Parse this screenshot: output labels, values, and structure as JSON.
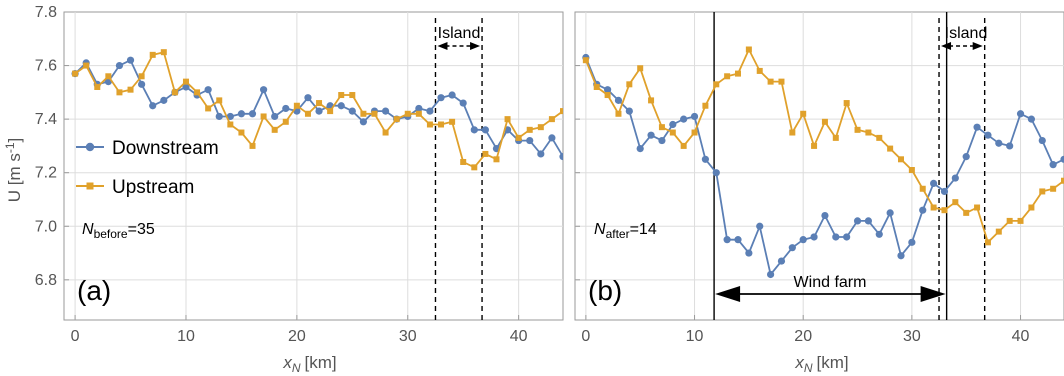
{
  "chart_data": [
    {
      "panel": "a",
      "type": "line",
      "panel_label": "(a)",
      "xlabel_main": "x",
      "xlabel_sub": "N",
      "xlabel_unit": "[km]",
      "ylabel": "U [m s",
      "ylabel_sup": "-1",
      "ylabel_close": "]",
      "xlim": [
        -1,
        44
      ],
      "ylim": [
        6.65,
        7.8
      ],
      "xticks": [
        0,
        10,
        20,
        30,
        40
      ],
      "yticks": [
        6.8,
        7.0,
        7.2,
        7.4,
        7.6,
        7.8
      ],
      "grid": true,
      "legend_placement": "left",
      "series": [
        {
          "name": "Downstream",
          "color": "#5b7fb5",
          "marker": "circle",
          "x": [
            0,
            1,
            2,
            3,
            4,
            5,
            6,
            7,
            8,
            9,
            10,
            11,
            12,
            13,
            14,
            15,
            16,
            17,
            18,
            19,
            20,
            21,
            22,
            23,
            24,
            25,
            26,
            27,
            28,
            29,
            30,
            31,
            32,
            33,
            34,
            35,
            36,
            37,
            38,
            39,
            40,
            41,
            42,
            43,
            44
          ],
          "y": [
            7.57,
            7.61,
            7.53,
            7.54,
            7.6,
            7.62,
            7.53,
            7.45,
            7.47,
            7.5,
            7.52,
            7.49,
            7.51,
            7.41,
            7.41,
            7.42,
            7.42,
            7.51,
            7.41,
            7.44,
            7.43,
            7.48,
            7.43,
            7.45,
            7.45,
            7.43,
            7.39,
            7.43,
            7.43,
            7.4,
            7.41,
            7.44,
            7.43,
            7.48,
            7.49,
            7.46,
            7.36,
            7.36,
            7.29,
            7.36,
            7.32,
            7.32,
            7.27,
            7.33,
            7.26
          ]
        },
        {
          "name": "Upstream",
          "color": "#e0a12b",
          "marker": "square",
          "x": [
            0,
            1,
            2,
            3,
            4,
            5,
            6,
            7,
            8,
            9,
            10,
            11,
            12,
            13,
            14,
            15,
            16,
            17,
            18,
            19,
            20,
            21,
            22,
            23,
            24,
            25,
            26,
            27,
            28,
            29,
            30,
            31,
            32,
            33,
            34,
            35,
            36,
            37,
            38,
            39,
            40,
            41,
            42,
            43,
            44
          ],
          "y": [
            7.57,
            7.6,
            7.52,
            7.56,
            7.5,
            7.51,
            7.56,
            7.64,
            7.65,
            7.5,
            7.54,
            7.5,
            7.44,
            7.47,
            7.38,
            7.35,
            7.3,
            7.41,
            7.36,
            7.39,
            7.45,
            7.42,
            7.46,
            7.43,
            7.49,
            7.49,
            7.42,
            7.42,
            7.35,
            7.4,
            7.42,
            7.42,
            7.38,
            7.38,
            7.39,
            7.24,
            7.22,
            7.27,
            7.25,
            7.4,
            7.33,
            7.36,
            7.37,
            7.4,
            7.43
          ]
        }
      ],
      "regions": [
        {
          "label": "Island",
          "x_start": 32.5,
          "x_end": 36.7,
          "style": "dashed"
        }
      ],
      "annotation": {
        "symbol": "N",
        "sub": "before",
        "text": "=35"
      }
    },
    {
      "panel": "b",
      "type": "line",
      "panel_label": "(b)",
      "xlabel_main": "x",
      "xlabel_sub": "N",
      "xlabel_unit": "[km]",
      "xlim": [
        -1,
        44
      ],
      "ylim": [
        6.65,
        7.8
      ],
      "xticks": [
        0,
        10,
        20,
        30,
        40
      ],
      "grid": true,
      "series": [
        {
          "name": "Downstream",
          "color": "#5b7fb5",
          "marker": "circle",
          "x": [
            0,
            1,
            2,
            3,
            4,
            5,
            6,
            7,
            8,
            9,
            10,
            11,
            12,
            13,
            14,
            15,
            16,
            17,
            18,
            19,
            20,
            21,
            22,
            23,
            24,
            25,
            26,
            27,
            28,
            29,
            30,
            31,
            32,
            33,
            34,
            35,
            36,
            37,
            38,
            39,
            40,
            41,
            42,
            43,
            44
          ],
          "y": [
            7.63,
            7.53,
            7.51,
            7.47,
            7.43,
            7.29,
            7.34,
            7.32,
            7.38,
            7.4,
            7.41,
            7.25,
            7.2,
            6.95,
            6.95,
            6.9,
            7.0,
            6.82,
            6.87,
            6.92,
            6.95,
            6.96,
            7.04,
            6.96,
            6.96,
            7.02,
            7.02,
            6.97,
            7.05,
            6.89,
            6.94,
            7.06,
            7.16,
            7.13,
            7.18,
            7.26,
            7.37,
            7.34,
            7.31,
            7.3,
            7.42,
            7.4,
            7.32,
            7.23,
            7.25
          ]
        },
        {
          "name": "Upstream",
          "color": "#e0a12b",
          "marker": "square",
          "x": [
            0,
            1,
            2,
            3,
            4,
            5,
            6,
            7,
            8,
            9,
            10,
            11,
            12,
            13,
            14,
            15,
            16,
            17,
            18,
            19,
            20,
            21,
            22,
            23,
            24,
            25,
            26,
            27,
            28,
            29,
            30,
            31,
            32,
            33,
            34,
            35,
            36,
            37,
            38,
            39,
            40,
            41,
            42,
            43,
            44
          ],
          "y": [
            7.62,
            7.52,
            7.49,
            7.42,
            7.53,
            7.59,
            7.47,
            7.37,
            7.35,
            7.3,
            7.35,
            7.45,
            7.53,
            7.56,
            7.57,
            7.66,
            7.58,
            7.54,
            7.54,
            7.35,
            7.42,
            7.3,
            7.39,
            7.33,
            7.46,
            7.36,
            7.35,
            7.33,
            7.29,
            7.25,
            7.21,
            7.14,
            7.07,
            7.06,
            7.09,
            7.05,
            7.07,
            6.94,
            6.98,
            7.02,
            7.02,
            7.07,
            7.13,
            7.14,
            7.17
          ]
        }
      ],
      "regions": [
        {
          "label": "Island",
          "x_start": 32.5,
          "x_end": 36.7,
          "style": "dashed"
        },
        {
          "label": "Wind farm",
          "x_start": 11.8,
          "x_end": 33.2,
          "style": "solid"
        }
      ],
      "annotation": {
        "symbol": "N",
        "sub": "after",
        "text": "=14"
      }
    }
  ]
}
